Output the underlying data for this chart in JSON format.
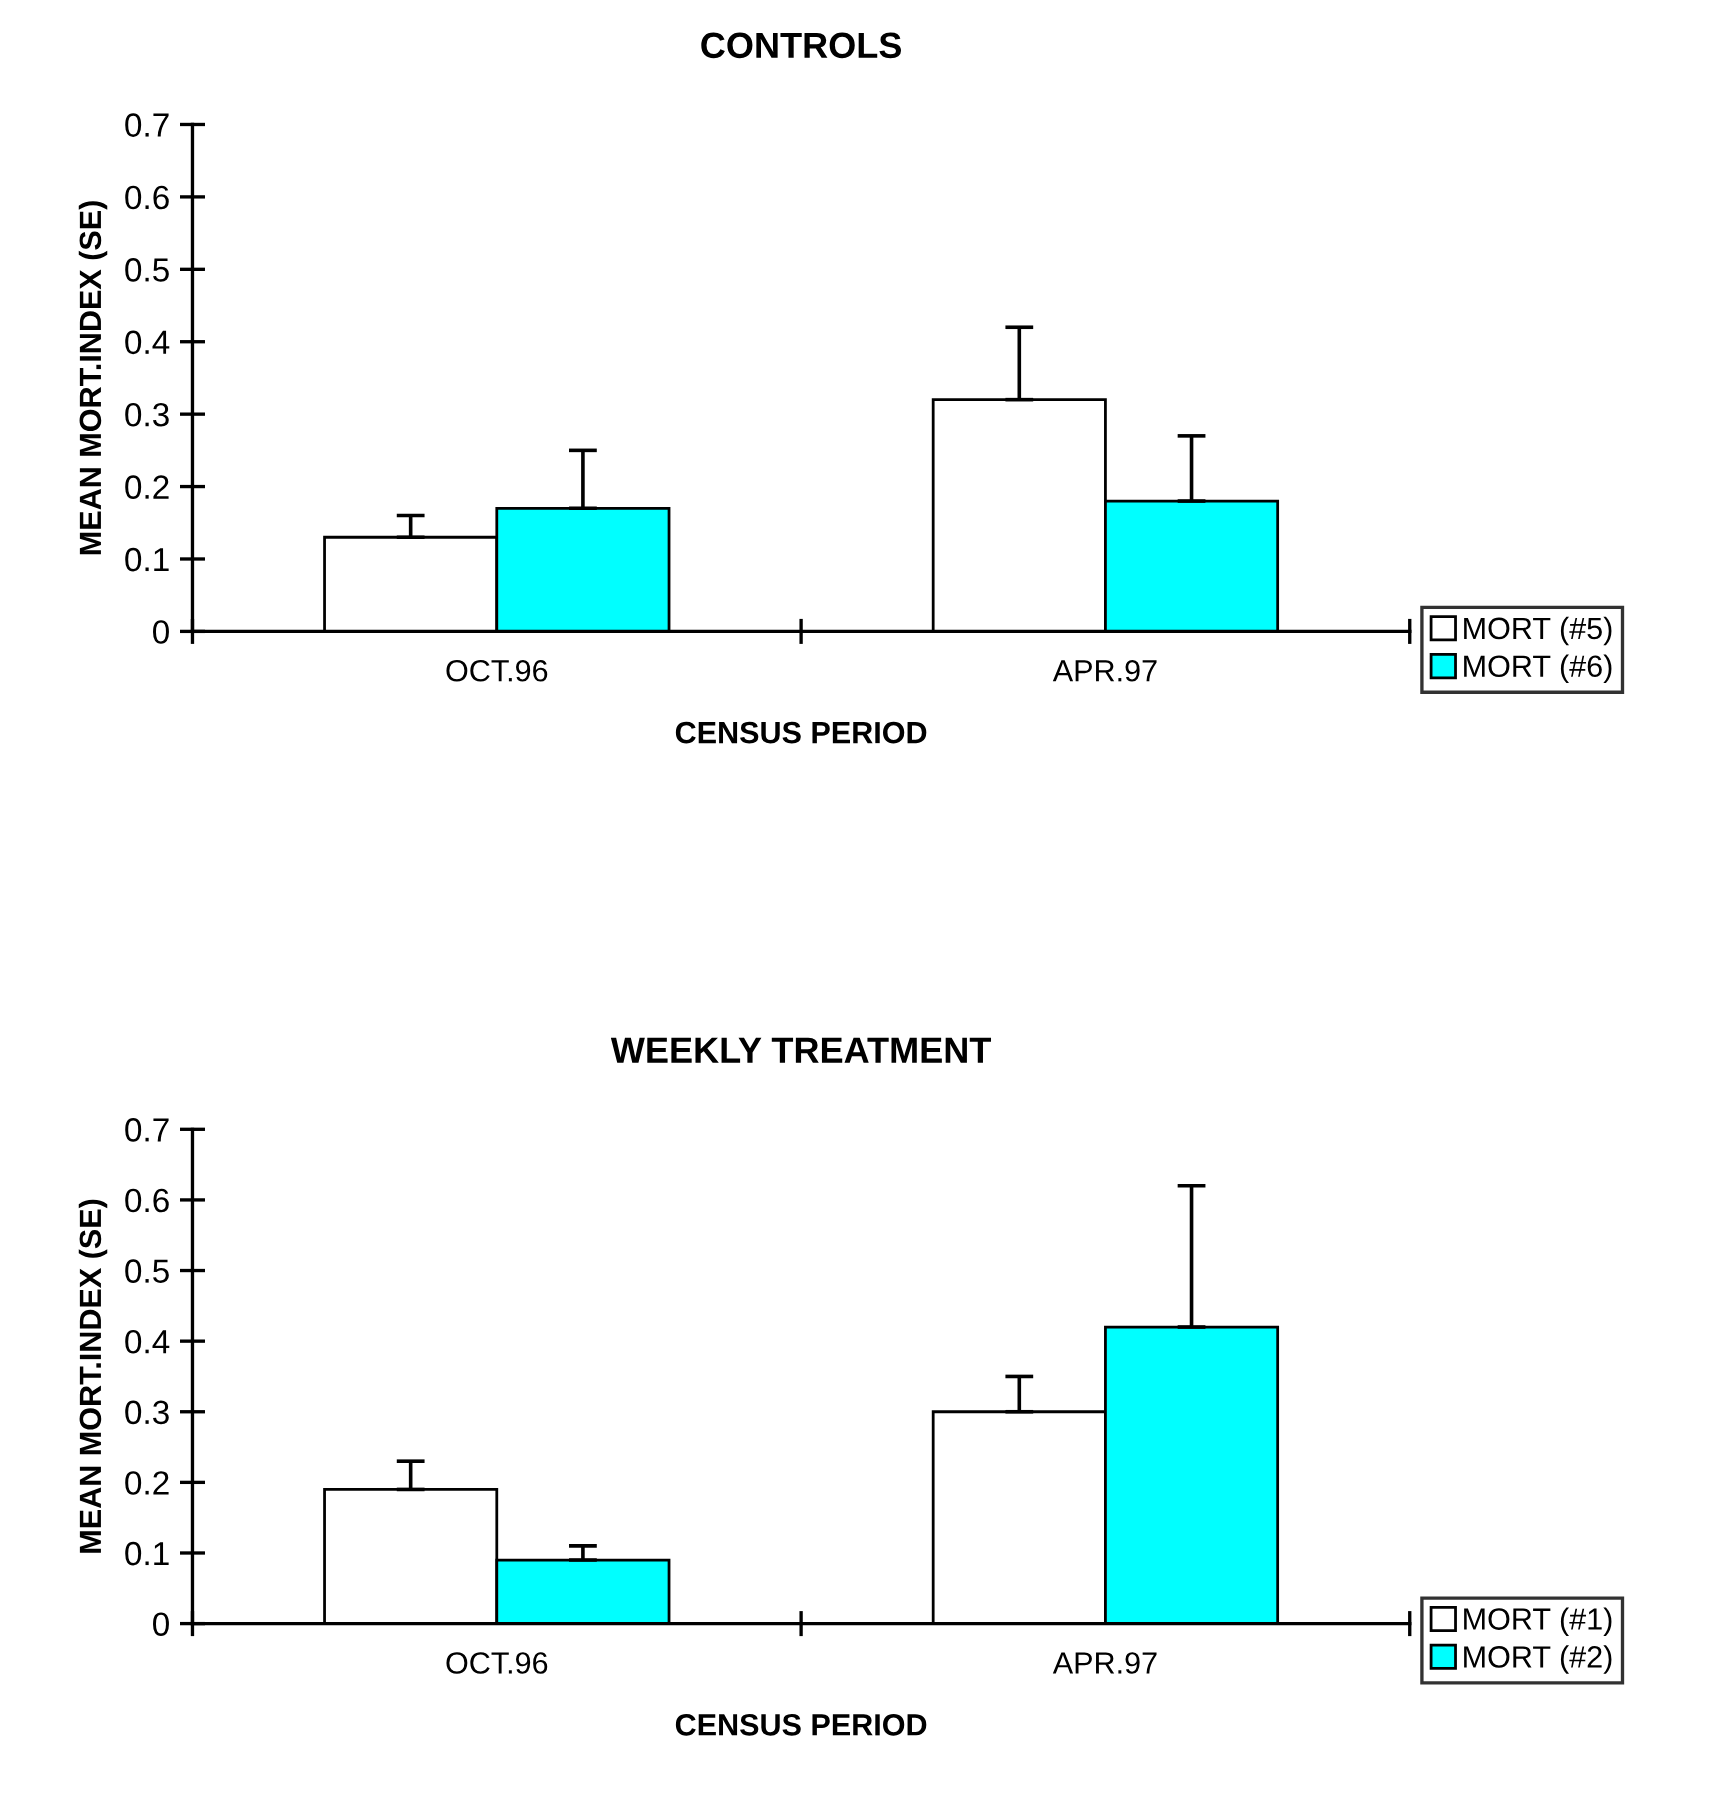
{
  "chart_data": [
    {
      "type": "bar",
      "title": "CONTROLS",
      "xlabel": "CENSUS PERIOD",
      "ylabel": "MEAN MORT.INDEX (SE)",
      "categories": [
        "OCT.96",
        "APR.97"
      ],
      "ylim": [
        0,
        0.7
      ],
      "yticks": [
        0,
        0.1,
        0.2,
        0.3,
        0.4,
        0.5,
        0.6,
        0.7
      ],
      "grid": false,
      "legend": "right",
      "series": [
        {
          "name": "MORT (#5)",
          "color": "#ffffff",
          "values": [
            0.13,
            0.32
          ],
          "errors": [
            [
              0.13,
              0.16
            ],
            [
              0.32,
              0.42
            ]
          ]
        },
        {
          "name": "MORT (#6)",
          "color": "#00ffff",
          "values": [
            0.17,
            0.18
          ],
          "errors": [
            [
              0.17,
              0.25
            ],
            [
              0.18,
              0.27
            ]
          ]
        }
      ]
    },
    {
      "type": "bar",
      "title": "WEEKLY TREATMENT",
      "xlabel": "CENSUS PERIOD",
      "ylabel": "MEAN MORT.INDEX (SE)",
      "categories": [
        "OCT.96",
        "APR.97"
      ],
      "ylim": [
        0,
        0.7
      ],
      "yticks": [
        0,
        0.1,
        0.2,
        0.3,
        0.4,
        0.5,
        0.6,
        0.7
      ],
      "grid": false,
      "legend": "right",
      "series": [
        {
          "name": "MORT (#1)",
          "color": "#ffffff",
          "values": [
            0.19,
            0.3
          ],
          "errors": [
            [
              0.19,
              0.23
            ],
            [
              0.3,
              0.35
            ]
          ]
        },
        {
          "name": "MORT (#2)",
          "color": "#00ffff",
          "values": [
            0.09,
            0.42
          ],
          "errors": [
            [
              0.09,
              0.11
            ],
            [
              0.42,
              0.62
            ]
          ]
        }
      ]
    }
  ]
}
